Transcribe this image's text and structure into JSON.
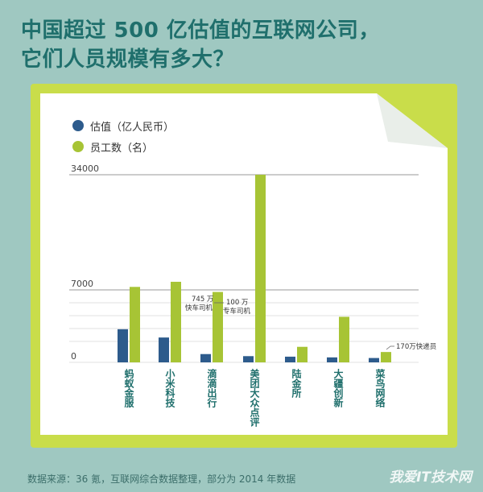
{
  "title_lines": [
    "中国超过 500 亿估值的互联网公司，",
    "它们人员规模有多大？"
  ],
  "source": "数据来源：36 氪，互联网综合数据整理，部分为 2014 年数据",
  "watermark": "我爱IT技术网",
  "colors": {
    "valuation": "#2d5b8c",
    "employees": "#a7c435",
    "accent": "#c9dd4a",
    "bg": "#9fc8c1"
  },
  "chart_data": {
    "type": "bar",
    "legend": [
      {
        "name": "估值（亿人民币）",
        "color": "#2d5b8c"
      },
      {
        "name": "员工数（名）",
        "color": "#a7c435"
      }
    ],
    "categories": [
      "蚂蚁金服",
      "小米科技",
      "滴滴出行",
      "美团大众点评",
      "陆金所",
      "大疆创新",
      "菜鸟网络"
    ],
    "series": [
      {
        "name": "估值（亿人民币）",
        "values": [
          3200,
          2400,
          800,
          600,
          550,
          480,
          420
        ]
      },
      {
        "name": "员工数（名）",
        "values": [
          7700,
          8900,
          6800,
          34000,
          1500,
          4400,
          1000
        ]
      }
    ],
    "ylim": [
      0,
      34000
    ],
    "yticks": [
      "0",
      "7000",
      "34000"
    ],
    "annotations": [
      {
        "text": "745 万",
        "sub": "快车司机"
      },
      {
        "text": "100 万",
        "sub": "专车司机"
      },
      {
        "text": "170万快递员"
      }
    ]
  }
}
